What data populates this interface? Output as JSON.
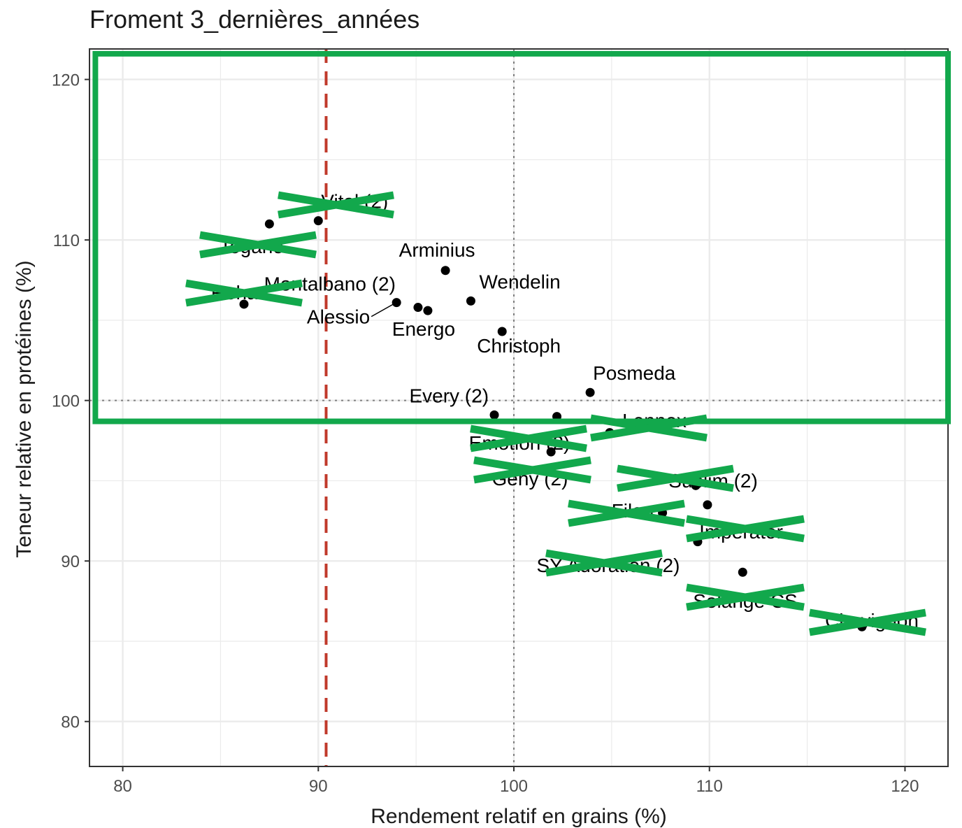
{
  "chart_data": {
    "type": "scatter",
    "title": "Froment 3_dernières_années",
    "xlabel": "Rendement relatif en grains (%)",
    "ylabel": "Teneur relative en protéines (%)",
    "xlim": [
      78.3,
      122.2
    ],
    "ylim": [
      77.2,
      121.9
    ],
    "xticks": [
      80,
      90,
      100,
      110,
      120
    ],
    "yticks": [
      80,
      90,
      100,
      110,
      120
    ],
    "grid": true,
    "legend": "none",
    "reference_lines": [
      {
        "axis": "x",
        "value": 100,
        "style": "dotted",
        "color": "#7f7f7f"
      },
      {
        "axis": "y",
        "value": 100,
        "style": "dotted",
        "color": "#7f7f7f"
      },
      {
        "axis": "x",
        "value": 90.4,
        "style": "dashed",
        "color": "#c0392b"
      }
    ],
    "points": [
      {
        "x": 87.5,
        "y": 111.0,
        "label": "",
        "crossed": true
      },
      {
        "x": 90.0,
        "y": 111.2,
        "label": "Vital (2)",
        "crossed": true
      },
      {
        "x": 86.2,
        "y": 106.0,
        "label": "",
        "crossed": true
      },
      {
        "x": 96.5,
        "y": 108.1,
        "label": "Arminius",
        "crossed": false
      },
      {
        "x": 94.0,
        "y": 106.1,
        "label": "Alessio",
        "crossed": false
      },
      {
        "x": 95.1,
        "y": 105.8,
        "label": "Montalbano (2)",
        "crossed": false
      },
      {
        "x": 95.6,
        "y": 105.6,
        "label": "Energo",
        "crossed": false
      },
      {
        "x": 97.8,
        "y": 106.2,
        "label": "Wendelin",
        "crossed": false
      },
      {
        "x": 99.4,
        "y": 104.3,
        "label": "Christoph",
        "crossed": false
      },
      {
        "x": 103.9,
        "y": 100.5,
        "label": "Posmeda",
        "crossed": false
      },
      {
        "x": 99.0,
        "y": 99.1,
        "label": "Every (2)",
        "crossed": false
      },
      {
        "x": 102.2,
        "y": 99.0,
        "label": "",
        "crossed": true
      },
      {
        "x": 104.9,
        "y": 98.0,
        "label": "",
        "crossed": true
      },
      {
        "x": 101.9,
        "y": 96.8,
        "label": "",
        "crossed": true
      },
      {
        "x": 109.3,
        "y": 94.7,
        "label": "",
        "crossed": true
      },
      {
        "x": 109.9,
        "y": 93.5,
        "label": "",
        "crossed": true
      },
      {
        "x": 107.6,
        "y": 93.0,
        "label": "",
        "crossed": true
      },
      {
        "x": 109.4,
        "y": 91.2,
        "label": "",
        "crossed": true
      },
      {
        "x": 111.7,
        "y": 89.3,
        "label": "",
        "crossed": true
      },
      {
        "x": 117.8,
        "y": 85.9,
        "label": "",
        "crossed": true
      }
    ],
    "extra_labels": [
      {
        "text": "Emotion (2)",
        "crossed": true
      },
      {
        "text": "Lennox",
        "crossed": true
      },
      {
        "text": "Geny (2)",
        "crossed": true
      },
      {
        "text": "Sublim (2)",
        "crossed": true
      },
      {
        "text": "Filon",
        "crossed": true
      },
      {
        "text": "Imperator",
        "crossed": true
      },
      {
        "text": "SY Adoration (2)",
        "crossed": true
      },
      {
        "text": "Solange CS",
        "crossed": true
      },
      {
        "text": "Chevignon",
        "crossed": true
      },
      {
        "text": "Togano",
        "crossed": true
      },
      {
        "text": "Rohan",
        "crossed": true
      }
    ],
    "highlight_box": {
      "x": [
        78.6,
        122.2
      ],
      "y": [
        98.7,
        121.6
      ],
      "color": "#12a84c"
    },
    "colors": {
      "points": "#000000",
      "grid": "#ebebeb",
      "border": "#333333",
      "highlight": "#12a84c",
      "dashed_line": "#c0392b"
    }
  }
}
